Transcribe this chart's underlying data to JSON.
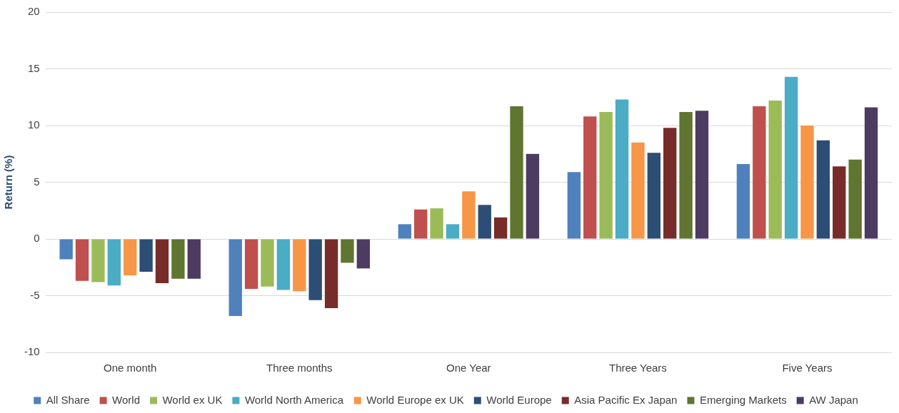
{
  "chart_data": {
    "type": "bar",
    "ylabel": "Return (%)",
    "categories": [
      "One month",
      "Three months",
      "One Year",
      "Three Years",
      "Five Years"
    ],
    "series": [
      {
        "name": "All Share",
        "color": "#4f81bd",
        "values": [
          -1.8,
          -6.8,
          1.3,
          5.9,
          6.6
        ]
      },
      {
        "name": "World",
        "color": "#c0504d",
        "values": [
          -3.7,
          -4.4,
          2.6,
          10.8,
          11.7
        ]
      },
      {
        "name": "World ex UK",
        "color": "#9bbb59",
        "values": [
          -3.8,
          -4.2,
          2.7,
          11.2,
          12.2
        ]
      },
      {
        "name": "World North America",
        "color": "#4bacc6",
        "values": [
          -4.1,
          -4.5,
          1.3,
          12.3,
          14.3
        ]
      },
      {
        "name": "World Europe ex UK",
        "color": "#f79646",
        "values": [
          -3.2,
          -4.6,
          4.2,
          8.5,
          10.0
        ]
      },
      {
        "name": "World Europe",
        "color": "#2c4d75",
        "values": [
          -2.9,
          -5.4,
          3.0,
          7.6,
          8.7
        ]
      },
      {
        "name": "Asia Pacific Ex Japan",
        "color": "#772c2a",
        "values": [
          -3.9,
          -6.1,
          1.9,
          9.8,
          6.4
        ]
      },
      {
        "name": "Emerging Markets",
        "color": "#5f7530",
        "values": [
          -3.5,
          -2.1,
          11.7,
          11.2,
          7.0
        ]
      },
      {
        "name": "AW Japan",
        "color": "#4d3b62",
        "values": [
          -3.5,
          -2.6,
          7.5,
          11.3,
          11.6
        ]
      }
    ],
    "ylim": [
      -10,
      20
    ],
    "yticks": [
      -10,
      -5,
      0,
      5,
      10,
      15,
      20
    ],
    "grid": "y",
    "legend": "bottom"
  }
}
